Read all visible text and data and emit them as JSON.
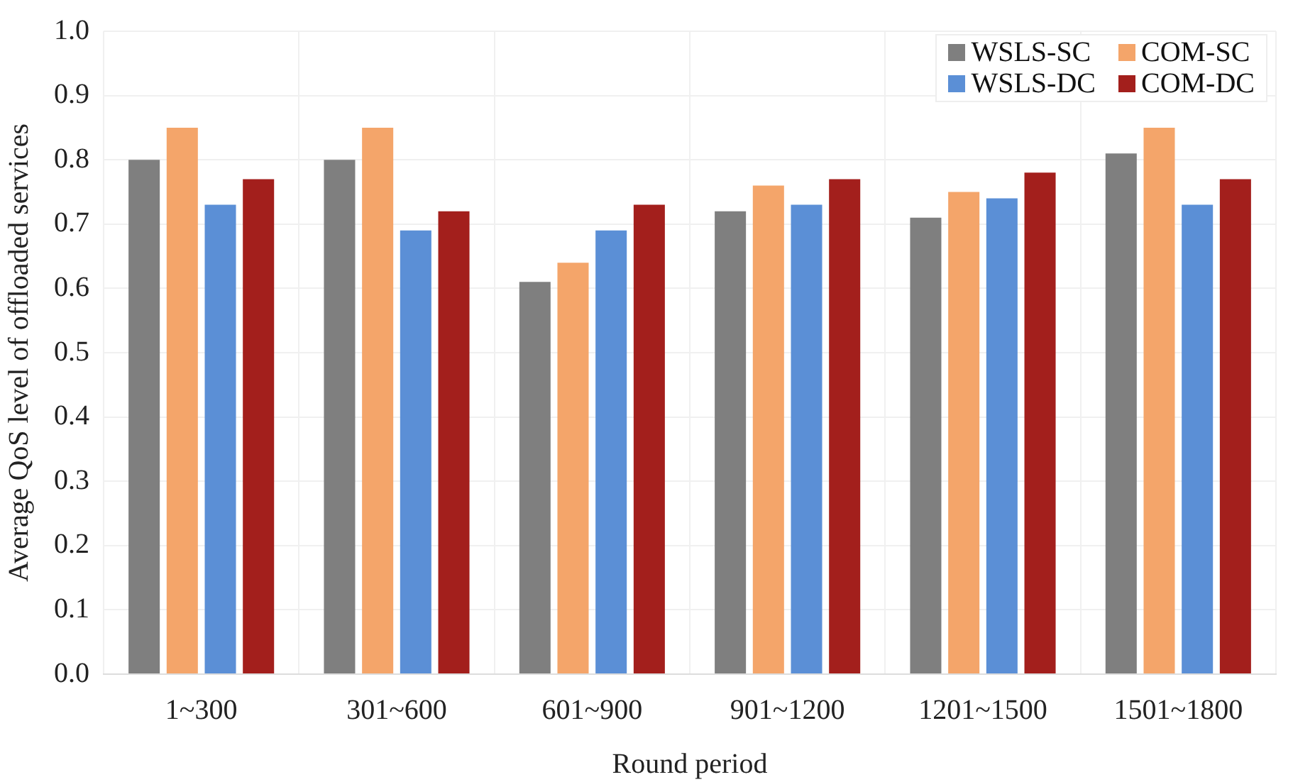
{
  "chart_data": {
    "type": "bar",
    "xlabel": "Round period",
    "ylabel": "Average QoS level of offloaded services",
    "categories": [
      "1~300",
      "301~600",
      "601~900",
      "901~1200",
      "1201~1500",
      "1501~1800"
    ],
    "series": [
      {
        "name": "WSLS-SC",
        "color": "#7f7f7f",
        "values": [
          0.8,
          0.8,
          0.61,
          0.72,
          0.71,
          0.81
        ]
      },
      {
        "name": "COM-SC",
        "color": "#f4a56a",
        "values": [
          0.85,
          0.85,
          0.64,
          0.76,
          0.75,
          0.85
        ]
      },
      {
        "name": "WSLS-DC",
        "color": "#5b8fd6",
        "values": [
          0.73,
          0.69,
          0.69,
          0.73,
          0.74,
          0.73
        ]
      },
      {
        "name": "COM-DC",
        "color": "#a31f1c",
        "values": [
          0.77,
          0.72,
          0.73,
          0.77,
          0.78,
          0.77
        ]
      }
    ],
    "ylim": [
      0,
      1
    ],
    "yticks": [
      {
        "value": 0,
        "label": "0.0"
      },
      0.1,
      0.2,
      0.3,
      0.4,
      0.5,
      0.6,
      0.7,
      0.8,
      0.9,
      {
        "value": 1,
        "label": "1.0"
      }
    ],
    "grid": true,
    "legend": "top right"
  }
}
